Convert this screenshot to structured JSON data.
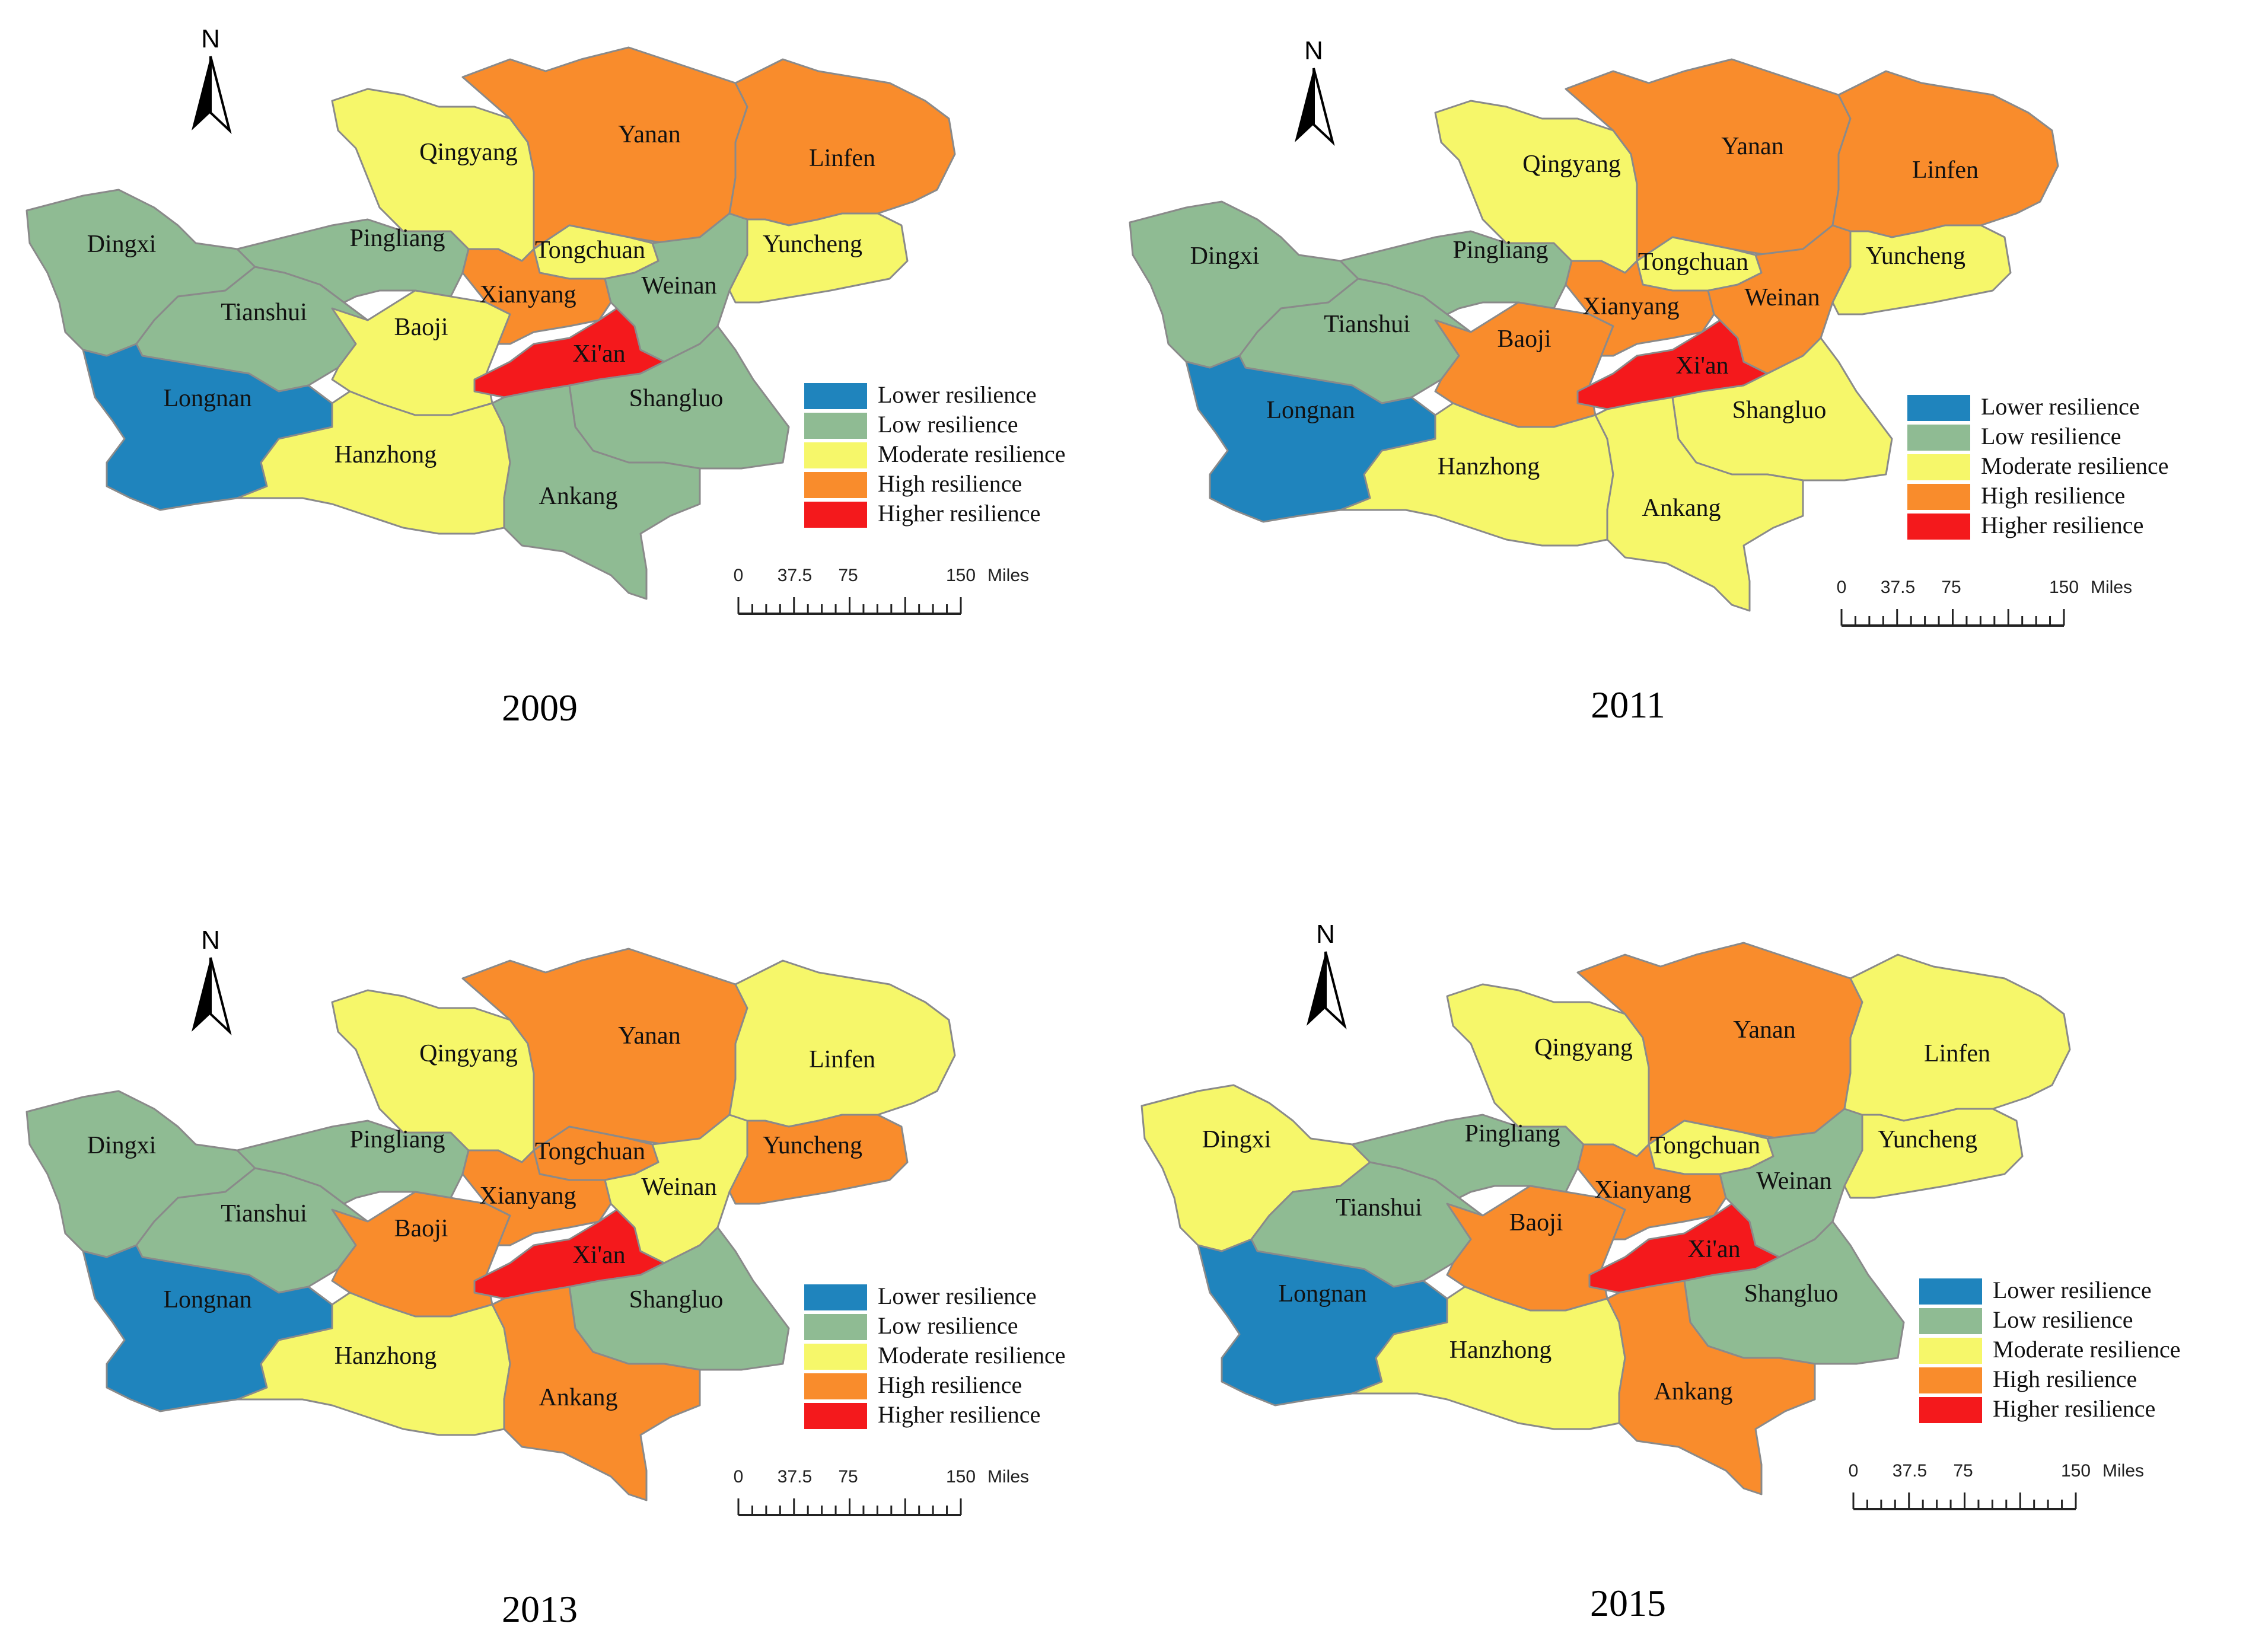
{
  "colors": {
    "Lower resilience": "#1f84bd",
    "Low resilience": "#8fbb93",
    "Moderate resilience": "#f6f76a",
    "High resilience": "#f98c2c",
    "Higher resilience": "#f4191c"
  },
  "legend": [
    {
      "label": "Lower resilience"
    },
    {
      "label": "Low resilience"
    },
    {
      "label": "Moderate resilience"
    },
    {
      "label": "High resilience"
    },
    {
      "label": "Higher resilience"
    }
  ],
  "north_label": "N",
  "scale_bar": {
    "ticks": [
      "0",
      "37.5",
      "75",
      "150"
    ],
    "unit": "Miles"
  },
  "maps": [
    {
      "year": "2009",
      "classes": {
        "Dingxi": "Low resilience",
        "Tianshui": "Low resilience",
        "Longnan": "Lower resilience",
        "Pingliang": "Low resilience",
        "Qingyang": "Moderate resilience",
        "Baoji": "Moderate resilience",
        "Hanzhong": "Moderate resilience",
        "Xianyang": "High resilience",
        "Tongchuan": "Moderate resilience",
        "Yanan": "High resilience",
        "Xi'an": "Higher resilience",
        "Ankang": "Low resilience",
        "Shangluo": "Low resilience",
        "Weinan": "Low resilience",
        "Yuncheng": "Moderate resilience",
        "Linfen": "High resilience"
      }
    },
    {
      "year": "2011",
      "classes": {
        "Dingxi": "Low resilience",
        "Tianshui": "Low resilience",
        "Longnan": "Lower resilience",
        "Pingliang": "Low resilience",
        "Qingyang": "Moderate resilience",
        "Baoji": "High resilience",
        "Hanzhong": "Moderate resilience",
        "Xianyang": "High resilience",
        "Tongchuan": "Moderate resilience",
        "Yanan": "High resilience",
        "Xi'an": "Higher resilience",
        "Ankang": "Moderate resilience",
        "Shangluo": "Moderate resilience",
        "Weinan": "High resilience",
        "Yuncheng": "Moderate resilience",
        "Linfen": "High resilience"
      }
    },
    {
      "year": "2013",
      "classes": {
        "Dingxi": "Low resilience",
        "Tianshui": "Low resilience",
        "Longnan": "Lower resilience",
        "Pingliang": "Low resilience",
        "Qingyang": "Moderate resilience",
        "Baoji": "High resilience",
        "Hanzhong": "Moderate resilience",
        "Xianyang": "High resilience",
        "Tongchuan": "High resilience",
        "Yanan": "High resilience",
        "Xi'an": "Higher resilience",
        "Ankang": "High resilience",
        "Shangluo": "Low resilience",
        "Weinan": "Moderate resilience",
        "Yuncheng": "High resilience",
        "Linfen": "Moderate resilience"
      }
    },
    {
      "year": "2015",
      "classes": {
        "Dingxi": "Moderate resilience",
        "Tianshui": "Low resilience",
        "Longnan": "Lower resilience",
        "Pingliang": "Low resilience",
        "Qingyang": "Moderate resilience",
        "Baoji": "High resilience",
        "Hanzhong": "Moderate resilience",
        "Xianyang": "High resilience",
        "Tongchuan": "Moderate resilience",
        "Yanan": "High resilience",
        "Xi'an": "Higher resilience",
        "Ankang": "High resilience",
        "Shangluo": "Low resilience",
        "Weinan": "Low resilience",
        "Yuncheng": "Moderate resilience",
        "Linfen": "Moderate resilience"
      }
    }
  ]
}
